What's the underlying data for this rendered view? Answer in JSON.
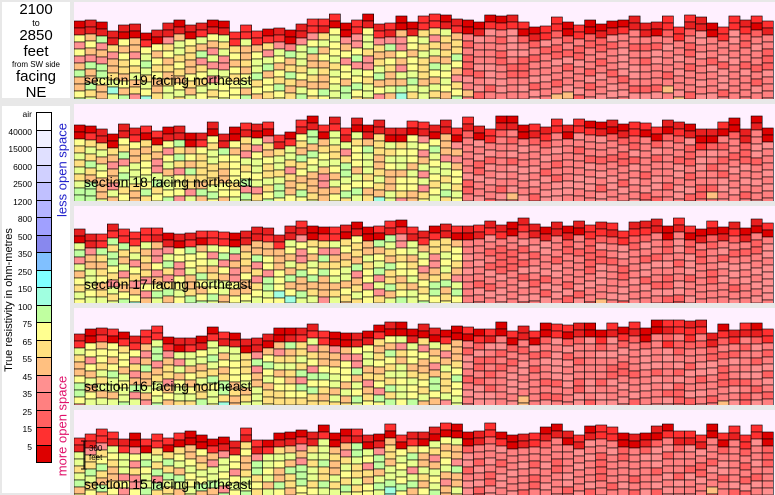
{
  "title": {
    "line1": "2100",
    "line2": "to",
    "line3": "2850",
    "line4": "feet",
    "line5": "from SW side",
    "line6": "facing",
    "line7": "NE"
  },
  "legend": {
    "y_label": "True resistivity in ohm-metres",
    "less_label": "less open space",
    "more_label": "more open space",
    "less_color": "#2222cc",
    "more_color": "#e0106a",
    "ticks": [
      "air",
      "40000",
      "15000",
      "6000",
      "2500",
      "1200",
      "800",
      "500",
      "350",
      "250",
      "150",
      "100",
      "75",
      "65",
      "55",
      "45",
      "35",
      "25",
      "15",
      "5"
    ],
    "colors": [
      "#ffffff",
      "#f0f0ff",
      "#e0e0ff",
      "#d0d0ff",
      "#c0c0ff",
      "#b4b4ff",
      "#a0a0ff",
      "#8888ee",
      "#80c0ff",
      "#80ffff",
      "#a0ffe0",
      "#c0ffa0",
      "#ffff90",
      "#ffe080",
      "#ffc080",
      "#ff9090",
      "#ff8080",
      "#ff6060",
      "#ff3030",
      "#dd0000"
    ]
  },
  "scale_bar": {
    "label1": "300",
    "label2": "feet"
  },
  "chart_data": {
    "type": "heatmap",
    "sections": [
      {
        "label": "section 19 facing northeast",
        "seed": 19
      },
      {
        "label": "section 18 facing northeast",
        "seed": 18
      },
      {
        "label": "section 17 facing northeast",
        "seed": 17
      },
      {
        "label": "section 16 facing northeast",
        "seed": 16
      },
      {
        "label": "section 15 facing northeast",
        "seed": 15
      }
    ],
    "color_scale": [
      "#ffffff",
      "#ffff90",
      "#ffe080",
      "#ffc080",
      "#ff9090",
      "#ff6060",
      "#ff3030",
      "#dd0000",
      "#80ffff",
      "#a0ffe0",
      "#c0ffa0",
      "#8888ee",
      "#80c0ff"
    ]
  }
}
